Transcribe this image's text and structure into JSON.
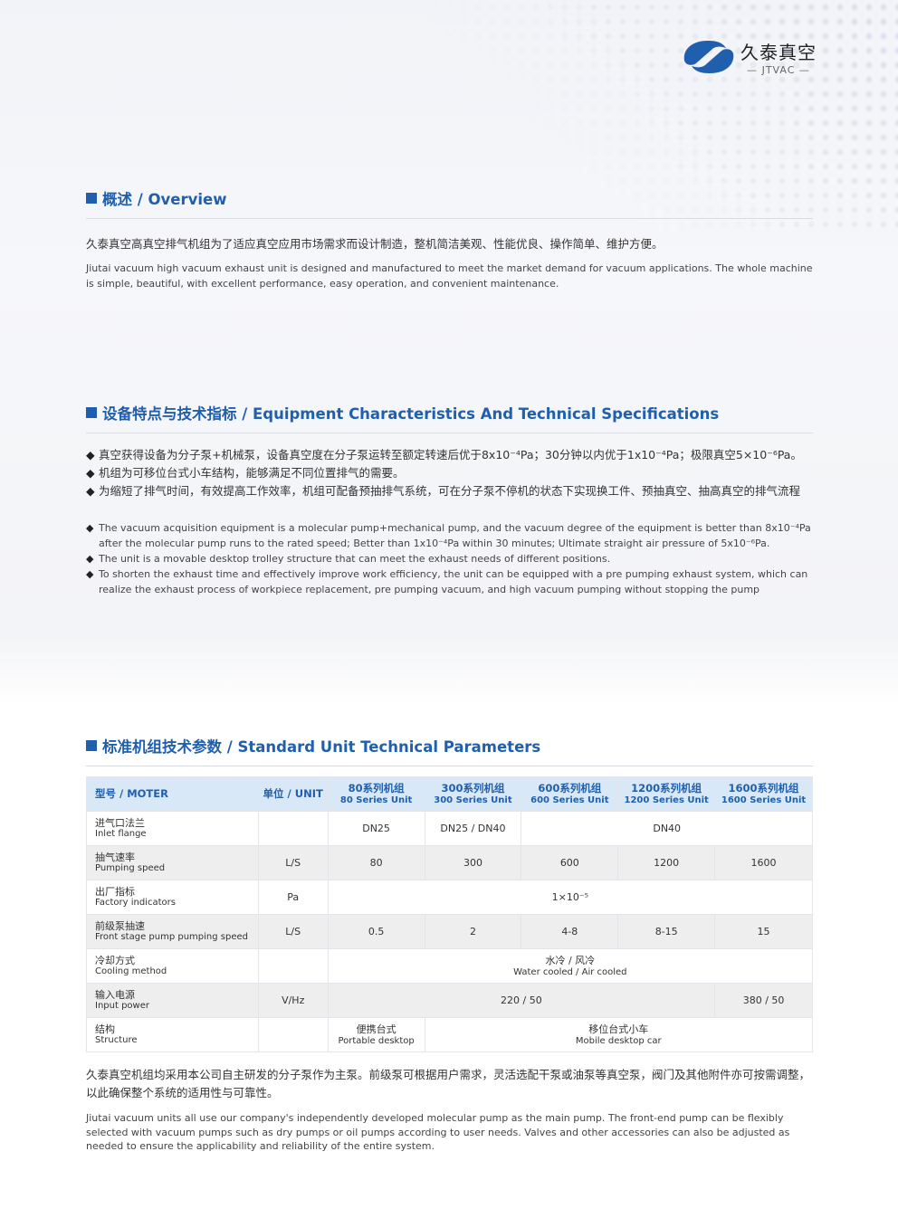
{
  "brand": {
    "name_cn": "久泰真空",
    "name_en": "JTVAC",
    "color": "#1f5fae"
  },
  "overview": {
    "title": "概述 / Overview",
    "cn": "久泰真空高真空排气机组为了适应真空应用市场需求而设计制造，整机简洁美观、性能优良、操作简单、维护方便。",
    "en": "Jiutai vacuum high vacuum exhaust unit is designed and manufactured to meet the market demand for vacuum applications. The whole machine is simple, beautiful, with excellent performance, easy operation, and convenient maintenance."
  },
  "characteristics": {
    "title": "设备特点与技术指标 / Equipment Characteristics And Technical Specifications",
    "cn_items": [
      "真空获得设备为分子泵+机械泵，设备真空度在分子泵运转至额定转速后优于8x10⁻⁴Pa；30分钟以内优于1x10⁻⁴Pa；极限真空5×10⁻⁶Pa。",
      "机组为可移位台式小车结构，能够满足不同位置排气的需要。",
      "为缩短了排气时间，有效提高工作效率，机组可配备预抽排气系统，可在分子泵不停机的状态下实现换工件、预抽真空、抽高真空的排气流程"
    ],
    "en_items": [
      "The vacuum acquisition equipment is a molecular pump+mechanical pump, and the vacuum degree of the equipment is better than 8x10⁻⁴Pa after the molecular pump runs to the rated speed; Better than 1x10⁻⁴Pa within 30 minutes; Ultimate straight air pressure of 5x10⁻⁶Pa.",
      "The unit is a movable desktop trolley structure that can meet the exhaust needs of different positions.",
      "To shorten the exhaust time and effectively improve work efficiency, the unit can be equipped with a pre pumping exhaust system, which can realize the exhaust process of workpiece replacement, pre pumping vacuum, and high vacuum pumping without stopping the pump"
    ]
  },
  "parameters": {
    "title": "标准机组技术参数 / Standard Unit Technical Parameters",
    "head": {
      "model": "型号 / MOTER",
      "unit": "单位 / UNIT",
      "series": [
        [
          "80系列机组",
          "80 Series Unit"
        ],
        [
          "300系列机组",
          "300 Series Unit"
        ],
        [
          "600系列机组",
          "600 Series Unit"
        ],
        [
          "1200系列机组",
          "1200 Series Unit"
        ],
        [
          "1600系列机组",
          "1600 Series Unit"
        ]
      ]
    },
    "rows": {
      "inlet": {
        "cn": "进气口法兰",
        "en": "Inlet flange",
        "unit": "",
        "v": [
          "DN25",
          "DN25 / DN40",
          "DN40"
        ]
      },
      "speed": {
        "cn": "抽气速率",
        "en": "Pumping speed",
        "unit": "L/S",
        "v": [
          "80",
          "300",
          "600",
          "1200",
          "1600"
        ]
      },
      "factory": {
        "cn": "出厂指标",
        "en": "Factory indicators",
        "unit": "Pa",
        "v": "1×10⁻⁵"
      },
      "front": {
        "cn": "前级泵抽速",
        "en": "Front stage pump pumping speed",
        "unit": "L/S",
        "v": [
          "0.5",
          "2",
          "4-8",
          "8-15",
          "15"
        ]
      },
      "cooling": {
        "cn": "冷却方式",
        "en": "Cooling method",
        "unit": "",
        "v_cn": "水冷 / 风冷",
        "v_en": "Water cooled / Air cooled"
      },
      "power": {
        "cn": "输入电源",
        "en": "Input power",
        "unit": "V/Hz",
        "v": [
          "220 / 50",
          "380 / 50"
        ]
      },
      "structure": {
        "cn": "结构",
        "en": "Structure",
        "unit": "",
        "v1_cn": "便携台式",
        "v1_en": "Portable desktop",
        "v2_cn": "移位台式小车",
        "v2_en": "Mobile desktop car"
      }
    },
    "note_cn": "久泰真空机组均采用本公司自主研发的分子泵作为主泵。前级泵可根据用户需求，灵活选配干泵或油泵等真空泵，阀门及其他附件亦可按需调整，以此确保整个系统的适用性与可靠性。",
    "note_en": "Jiutai vacuum units all use our company's independently developed molecular pump as the main pump. The front-end pump can be flexibly selected with vacuum pumps such as dry pumps or oil pumps according to user needs. Valves and other accessories can also be adjusted as needed to ensure the applicability and reliability of the entire system."
  }
}
